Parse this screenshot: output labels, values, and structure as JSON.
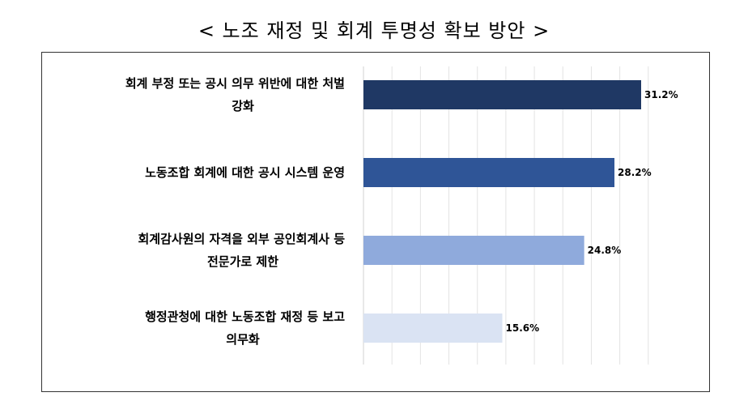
{
  "title": "< 노조 재정 및 회계 투명성 확보 방안 >",
  "chart_data": {
    "type": "bar",
    "orientation": "horizontal",
    "categories": [
      [
        "회계 부정 또는 공시 의무 위반에 대한 처벌",
        "강화"
      ],
      [
        "노동조합 회계에 대한 공시 시스템 운영"
      ],
      [
        "회계감사원의 자격을 외부 공인회계사 등",
        "전문가로 제한"
      ],
      [
        "행정관청에 대한 노동조합 재정 등 보고",
        "의무화"
      ]
    ],
    "values": [
      31.2,
      28.2,
      24.8,
      15.6
    ],
    "value_labels": [
      "31.2%",
      "28.2%",
      "24.8%",
      "15.6%"
    ],
    "colors": [
      "#1f3864",
      "#2f5597",
      "#8faadc",
      "#dae3f3"
    ],
    "xlim": [
      0,
      35
    ],
    "grid": true
  }
}
